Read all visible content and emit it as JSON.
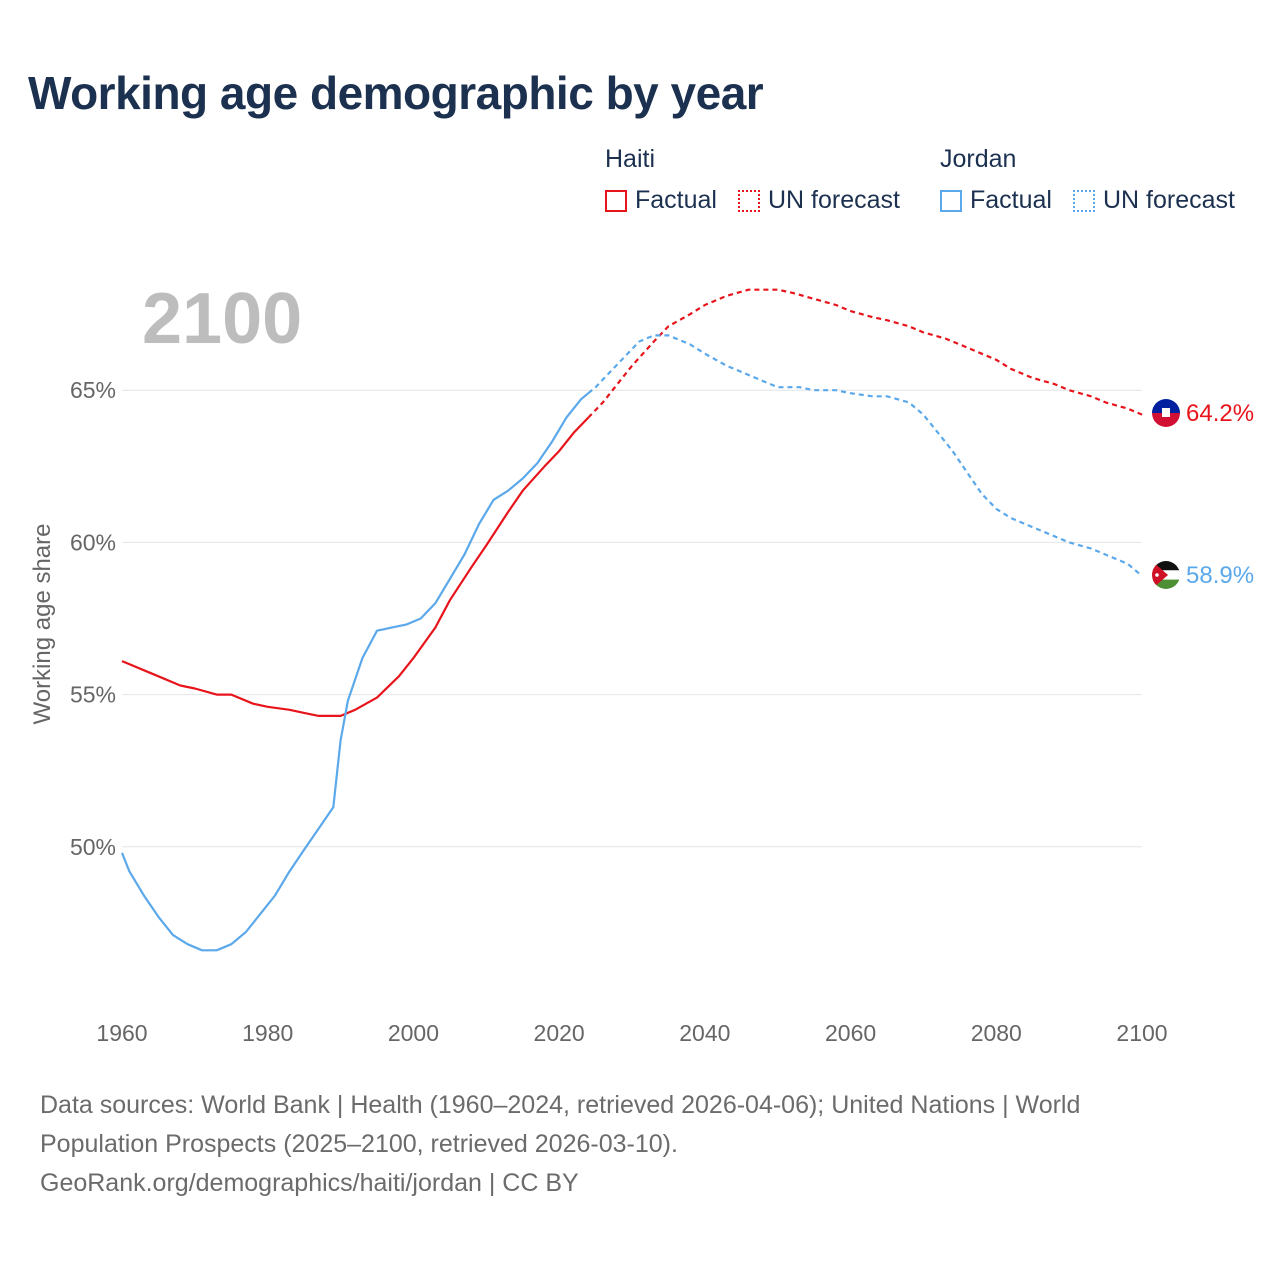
{
  "title": "Working age demographic by year",
  "legend": {
    "groups": [
      {
        "name": "Haiti",
        "color": "#e8141b",
        "items": [
          "Factual",
          "UN forecast"
        ]
      },
      {
        "name": "Jordan",
        "color": "#5ba8ea",
        "items": [
          "Factual",
          "UN forecast"
        ]
      }
    ]
  },
  "footer": {
    "line1": "Data sources: World Bank | Health (1960–2024, retrieved 2026-04-06); United Nations | World",
    "line2": "Population Prospects (2025–2100, retrieved 2026-03-10).",
    "line3": "GeoRank.org/demographics/haiti/jordan | CC BY"
  },
  "chart_data": {
    "type": "line",
    "year_label": "2100",
    "ylabel": "Working age share",
    "xlim": [
      1960,
      2100
    ],
    "ylim": [
      45,
      70
    ],
    "x_ticks": [
      "1960",
      "1980",
      "2000",
      "2020",
      "2040",
      "2060",
      "2080",
      "2100"
    ],
    "x_tick_values": [
      1960,
      1980,
      2000,
      2020,
      2040,
      2060,
      2080,
      2100
    ],
    "y_ticks": [
      "50%",
      "55%",
      "60%",
      "65%"
    ],
    "y_tick_values": [
      50,
      55,
      60,
      65
    ],
    "grid": true,
    "factual_until": 2024,
    "series": [
      {
        "name": "Haiti",
        "color": "#e8141b",
        "end_label": "64.2%",
        "flag": "haiti-flag",
        "x": [
          1960,
          1965,
          1968,
          1970,
          1973,
          1975,
          1978,
          1980,
          1983,
          1985,
          1987,
          1990,
          1992,
          1995,
          1998,
          2000,
          2003,
          2005,
          2008,
          2010,
          2013,
          2015,
          2018,
          2020,
          2022,
          2024,
          2026,
          2028,
          2030,
          2033,
          2035,
          2038,
          2040,
          2043,
          2046,
          2048,
          2050,
          2052,
          2055,
          2058,
          2060,
          2063,
          2065,
          2068,
          2070,
          2073,
          2075,
          2078,
          2080,
          2082,
          2085,
          2088,
          2090,
          2093,
          2095,
          2098,
          2100
        ],
        "y": [
          56.1,
          55.6,
          55.3,
          55.2,
          55.0,
          55.0,
          54.7,
          54.6,
          54.5,
          54.4,
          54.3,
          54.3,
          54.5,
          54.9,
          55.6,
          56.2,
          57.2,
          58.1,
          59.2,
          59.9,
          61.0,
          61.7,
          62.5,
          63.0,
          63.6,
          64.1,
          64.6,
          65.2,
          65.8,
          66.6,
          67.1,
          67.5,
          67.8,
          68.1,
          68.3,
          68.3,
          68.3,
          68.2,
          68.0,
          67.8,
          67.6,
          67.4,
          67.3,
          67.1,
          66.9,
          66.7,
          66.5,
          66.2,
          66.0,
          65.7,
          65.4,
          65.2,
          65.0,
          64.8,
          64.6,
          64.4,
          64.2
        ]
      },
      {
        "name": "Jordan",
        "color": "#5ba8ea",
        "end_label": "58.9%",
        "flag": "jordan-flag",
        "x": [
          1960,
          1961,
          1963,
          1965,
          1967,
          1969,
          1971,
          1973,
          1975,
          1977,
          1979,
          1981,
          1983,
          1985,
          1987,
          1989,
          1990,
          1991,
          1993,
          1995,
          1997,
          1999,
          2001,
          2003,
          2005,
          2007,
          2009,
          2011,
          2013,
          2015,
          2017,
          2019,
          2021,
          2023,
          2024,
          2025,
          2027,
          2029,
          2031,
          2033,
          2035,
          2038,
          2040,
          2043,
          2045,
          2048,
          2050,
          2053,
          2055,
          2058,
          2060,
          2063,
          2065,
          2068,
          2070,
          2072,
          2074,
          2076,
          2078,
          2080,
          2082,
          2085,
          2088,
          2090,
          2093,
          2095,
          2098,
          2100
        ],
        "y": [
          49.8,
          49.2,
          48.4,
          47.7,
          47.1,
          46.8,
          46.6,
          46.6,
          46.8,
          47.2,
          47.8,
          48.4,
          49.2,
          49.9,
          50.6,
          51.3,
          53.5,
          54.8,
          56.2,
          57.1,
          57.2,
          57.3,
          57.5,
          58.0,
          58.8,
          59.6,
          60.6,
          61.4,
          61.7,
          62.1,
          62.6,
          63.3,
          64.1,
          64.7,
          64.9,
          65.1,
          65.6,
          66.1,
          66.6,
          66.8,
          66.8,
          66.5,
          66.2,
          65.8,
          65.6,
          65.3,
          65.1,
          65.1,
          65.0,
          65.0,
          64.9,
          64.8,
          64.8,
          64.6,
          64.2,
          63.6,
          63.0,
          62.3,
          61.6,
          61.1,
          60.8,
          60.5,
          60.2,
          60.0,
          59.8,
          59.6,
          59.3,
          58.9
        ]
      }
    ]
  }
}
